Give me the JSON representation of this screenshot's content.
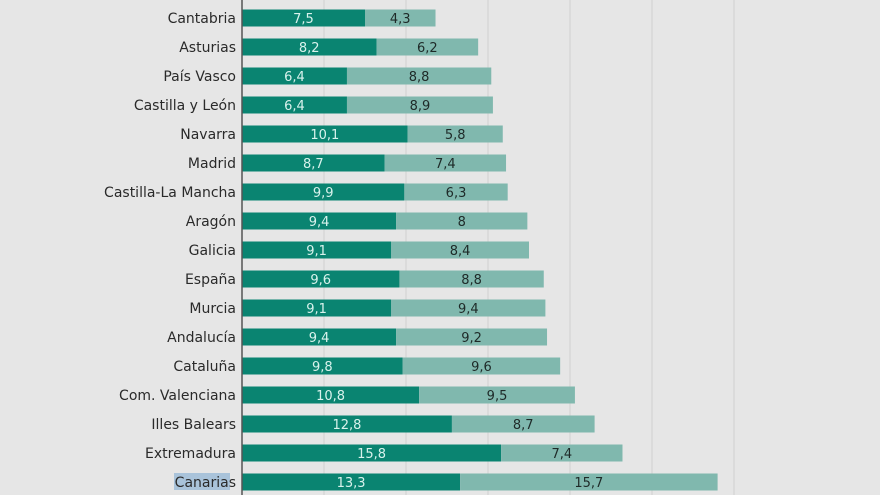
{
  "chart_data": {
    "type": "bar",
    "orientation": "horizontal",
    "stacked": true,
    "categories": [
      "Cantabria",
      "Asturias",
      "País Vasco",
      "Castilla y León",
      "Navarra",
      "Madrid",
      "Castilla-La Mancha",
      "Aragón",
      "Galicia",
      "España",
      "Murcia",
      "Andalucía",
      "Cataluña",
      "Com. Valenciana",
      "Illes Balears",
      "Extremadura",
      "Canarias"
    ],
    "series": [
      {
        "name": "series-1",
        "color": "#0a8471",
        "values": [
          7.5,
          8.2,
          6.4,
          6.4,
          10.1,
          8.7,
          9.9,
          9.4,
          9.1,
          9.6,
          9.1,
          9.4,
          9.8,
          10.8,
          12.8,
          15.8,
          13.3
        ]
      },
      {
        "name": "series-2",
        "color": "#80b8ae",
        "values": [
          4.3,
          6.2,
          8.8,
          8.9,
          5.8,
          7.4,
          6.3,
          8,
          8.4,
          8.8,
          9.4,
          9.2,
          9.6,
          9.5,
          8.7,
          7.4,
          15.7
        ]
      }
    ],
    "labels_1": [
      "7,5",
      "8,2",
      "6,4",
      "6,4",
      "10,1",
      "8,7",
      "9,9",
      "9,4",
      "9,1",
      "9,6",
      "9,1",
      "9,4",
      "9,8",
      "10,8",
      "12,8",
      "15,8",
      "13,3"
    ],
    "labels_2": [
      "4,3",
      "6,2",
      "8,8",
      "8,9",
      "5,8",
      "7,4",
      "6,3",
      "8",
      "8,4",
      "8,8",
      "9,4",
      "9,2",
      "9,6",
      "9,5",
      "8,7",
      "7,4",
      "15,7"
    ],
    "xlim": [
      0,
      30
    ],
    "grid": true,
    "grid_step": 5,
    "highlighted_category": "Canarias"
  }
}
